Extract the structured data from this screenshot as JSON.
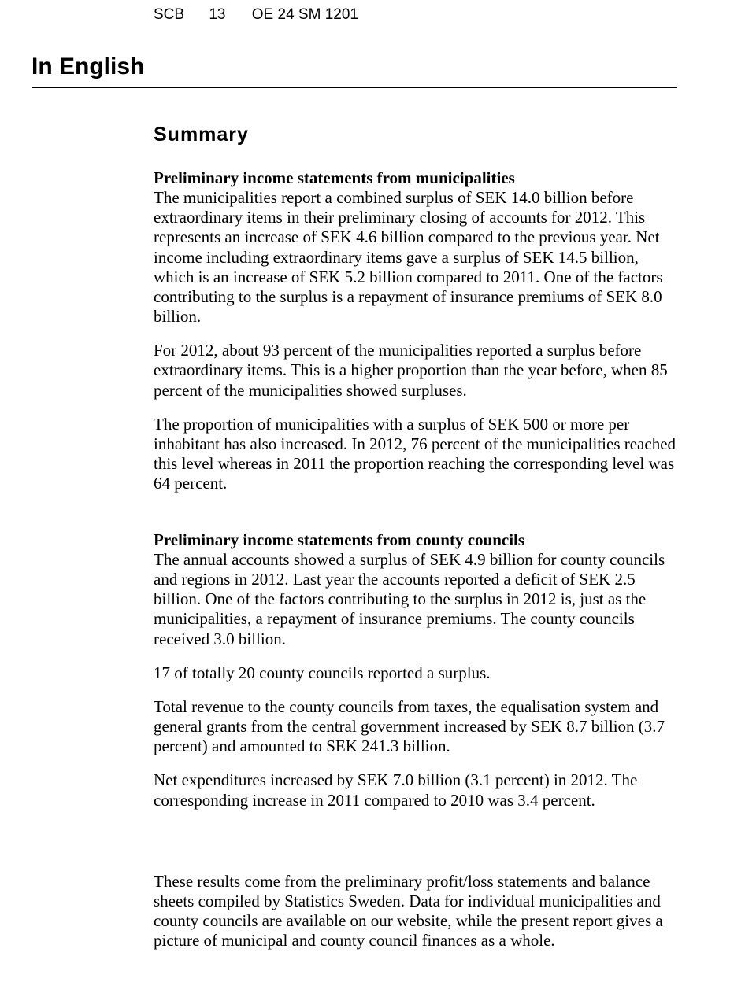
{
  "header": {
    "org": "SCB",
    "page_num": "13",
    "doc_code": "OE 24 SM 1201"
  },
  "headings": {
    "main": "In English",
    "summary": "Summary",
    "sub1": "Preliminary income statements from municipalities",
    "sub2": "Preliminary income statements from county councils"
  },
  "paragraphs": {
    "p1": "The municipalities report a combined surplus of SEK 14.0 billion before extraordinary items in their preliminary closing of accounts for 2012. This represents an increase of SEK 4.6 billion compared to the previous year. Net income including extraordinary items gave a surplus of SEK 14.5 billion, which is an increase of SEK 5.2 billion compared to 2011. One of the factors contributing to the surplus is a repayment of insurance premiums of SEK 8.0 billion.",
    "p2": "For 2012, about 93 percent of the municipalities reported a surplus before extraordinary items. This is a higher proportion than the year before, when 85 percent of the municipalities showed surpluses.",
    "p3": "The proportion of municipalities with a surplus of SEK 500 or more per inhabitant has also increased. In 2012, 76 percent of the municipalities reached this level whereas in 2011 the proportion reaching the corresponding level was 64 percent.",
    "p4": "The annual accounts showed a surplus of SEK 4.9 billion for county councils and regions in 2012. Last year the accounts reported a deficit of SEK 2.5 billion. One of the factors contributing to the surplus in 2012 is, just as the municipalities, a repayment of insurance premiums. The county councils received 3.0 billion.",
    "p5": "17 of totally 20 county councils reported a surplus.",
    "p6": "Total revenue to the county councils from taxes, the equalisation system and general grants from the central government increased by SEK 8.7 billion (3.7 percent) and amounted to SEK 241.3 billion.",
    "p7": "Net expenditures increased by SEK 7.0 billion (3.1 percent) in 2012. The corresponding increase in 2011 compared to 2010 was 3.4 percent.",
    "p8": "These results come from the preliminary profit/loss statements and balance sheets compiled by Statistics Sweden. Data for individual municipalities and county councils are available on our website, while the present report gives a picture of municipal and county council finances as a whole."
  }
}
